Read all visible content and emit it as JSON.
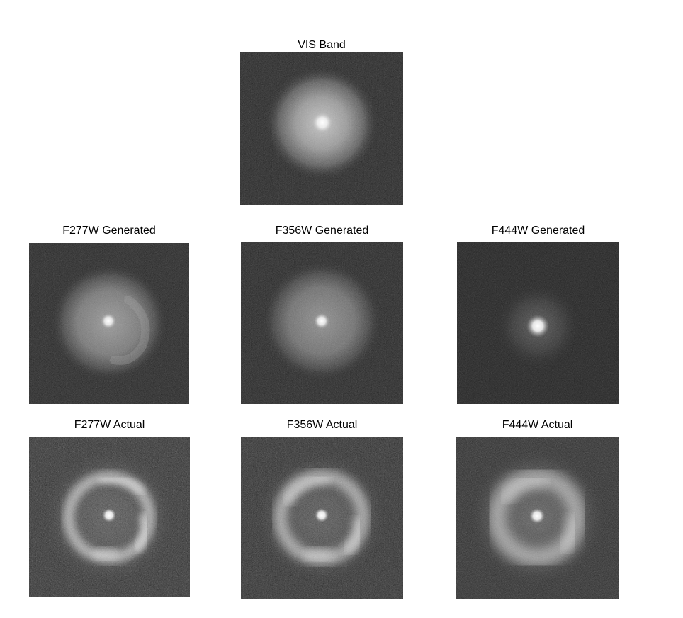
{
  "figure": {
    "panels": [
      {
        "id": "vis",
        "title": "VIS Band",
        "morphology": "diffuse-disk"
      },
      {
        "id": "f277w-gen",
        "title": "F277W Generated",
        "morphology": "diffuse-disk-arm"
      },
      {
        "id": "f356w-gen",
        "title": "F356W Generated",
        "morphology": "diffuse-disk"
      },
      {
        "id": "f444w-gen",
        "title": "F444W Generated",
        "morphology": "compact-core"
      },
      {
        "id": "f277w-act",
        "title": "F277W Actual",
        "morphology": "einstein-ring"
      },
      {
        "id": "f356w-act",
        "title": "F356W Actual",
        "morphology": "einstein-ring"
      },
      {
        "id": "f444w-act",
        "title": "F444W Actual",
        "morphology": "einstein-ring-broad"
      }
    ]
  }
}
